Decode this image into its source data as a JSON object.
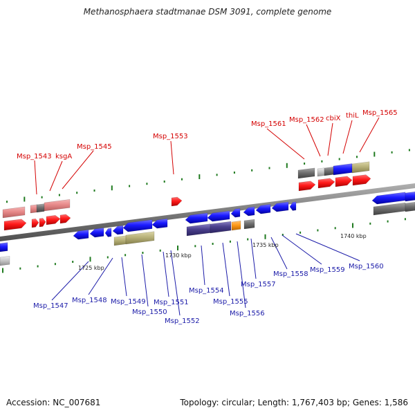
{
  "title": "Methanosphaera stadtmanae DSM 3091, complete genome",
  "footer": {
    "accession": "Accession: NC_007681",
    "summary": "Topology: circular; Length: 1,767,403 bp; Genes: 1,586"
  },
  "colors": {
    "backbone": "#7a7a7a",
    "gene_red": "#ff1a1a",
    "gene_pink": "#e88a8a",
    "gene_blue": "#1a1aff",
    "gene_gray": "#707070",
    "gene_khaki": "#b8b27a",
    "gene_purple": "#4a3f8c",
    "gene_orange": "#ff9a1a",
    "gene_silver": "#c8c8c8",
    "tick": "#1f7a1f",
    "label_top": "#d40000",
    "label_bottom": "#1a1aa8"
  },
  "scale_labels": [
    "1725 kbp",
    "1730 kbp",
    "1735 kbp",
    "1740 kbp"
  ],
  "top_labels": [
    "Msp_1543",
    "ksgA",
    "Msp_1545",
    "Msp_1553",
    "Msp_1561",
    "Msp_1562",
    "cbiX",
    "thiL",
    "Msp_1565"
  ],
  "bottom_labels": [
    "Msp_1547",
    "Msp_1548",
    "Msp_1549",
    "Msp_1550",
    "Msp_1551",
    "Msp_1552",
    "Msp_1554",
    "Msp_1555",
    "Msp_1556",
    "Msp_1557",
    "Msp_1558",
    "Msp_1559",
    "Msp_1560"
  ]
}
